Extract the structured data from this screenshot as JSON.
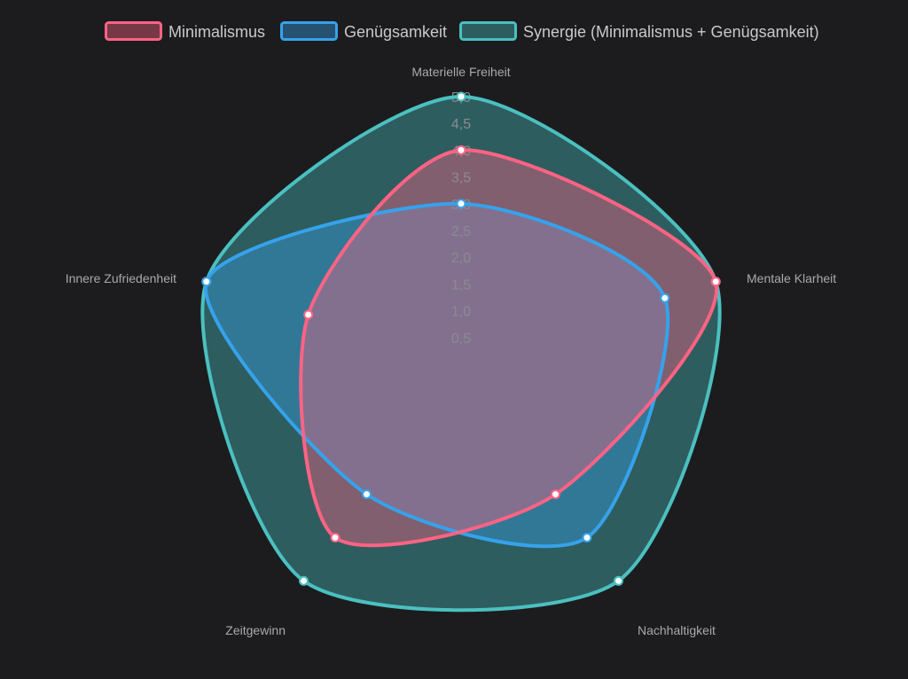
{
  "chart_data": {
    "type": "radar",
    "categories": [
      "Materielle Freiheit",
      "Mentale Klarheit",
      "Nachhaltigkeit",
      "Zeitgewinn",
      "Innere Zufriedenheit"
    ],
    "series": [
      {
        "name": "Minimalismus",
        "values": [
          4.0,
          5.0,
          3.0,
          4.0,
          3.0
        ],
        "color": "#ff6384"
      },
      {
        "name": "Genügsamkeit",
        "values": [
          3.0,
          4.0,
          4.0,
          3.0,
          5.0
        ],
        "color": "#36a2eb"
      },
      {
        "name": "Synergie (Minimalismus + Genügsamkeit)",
        "values": [
          5.0,
          5.0,
          5.0,
          5.0,
          5.0
        ],
        "color": "#4bc0c0"
      }
    ],
    "rlim": [
      0,
      5
    ],
    "ticks": [
      "0,5",
      "1,0",
      "1,5",
      "2,0",
      "2,5",
      "3,0",
      "3,5",
      "4,0",
      "4,5",
      "5,0"
    ],
    "legend_position": "top",
    "grid": false
  }
}
